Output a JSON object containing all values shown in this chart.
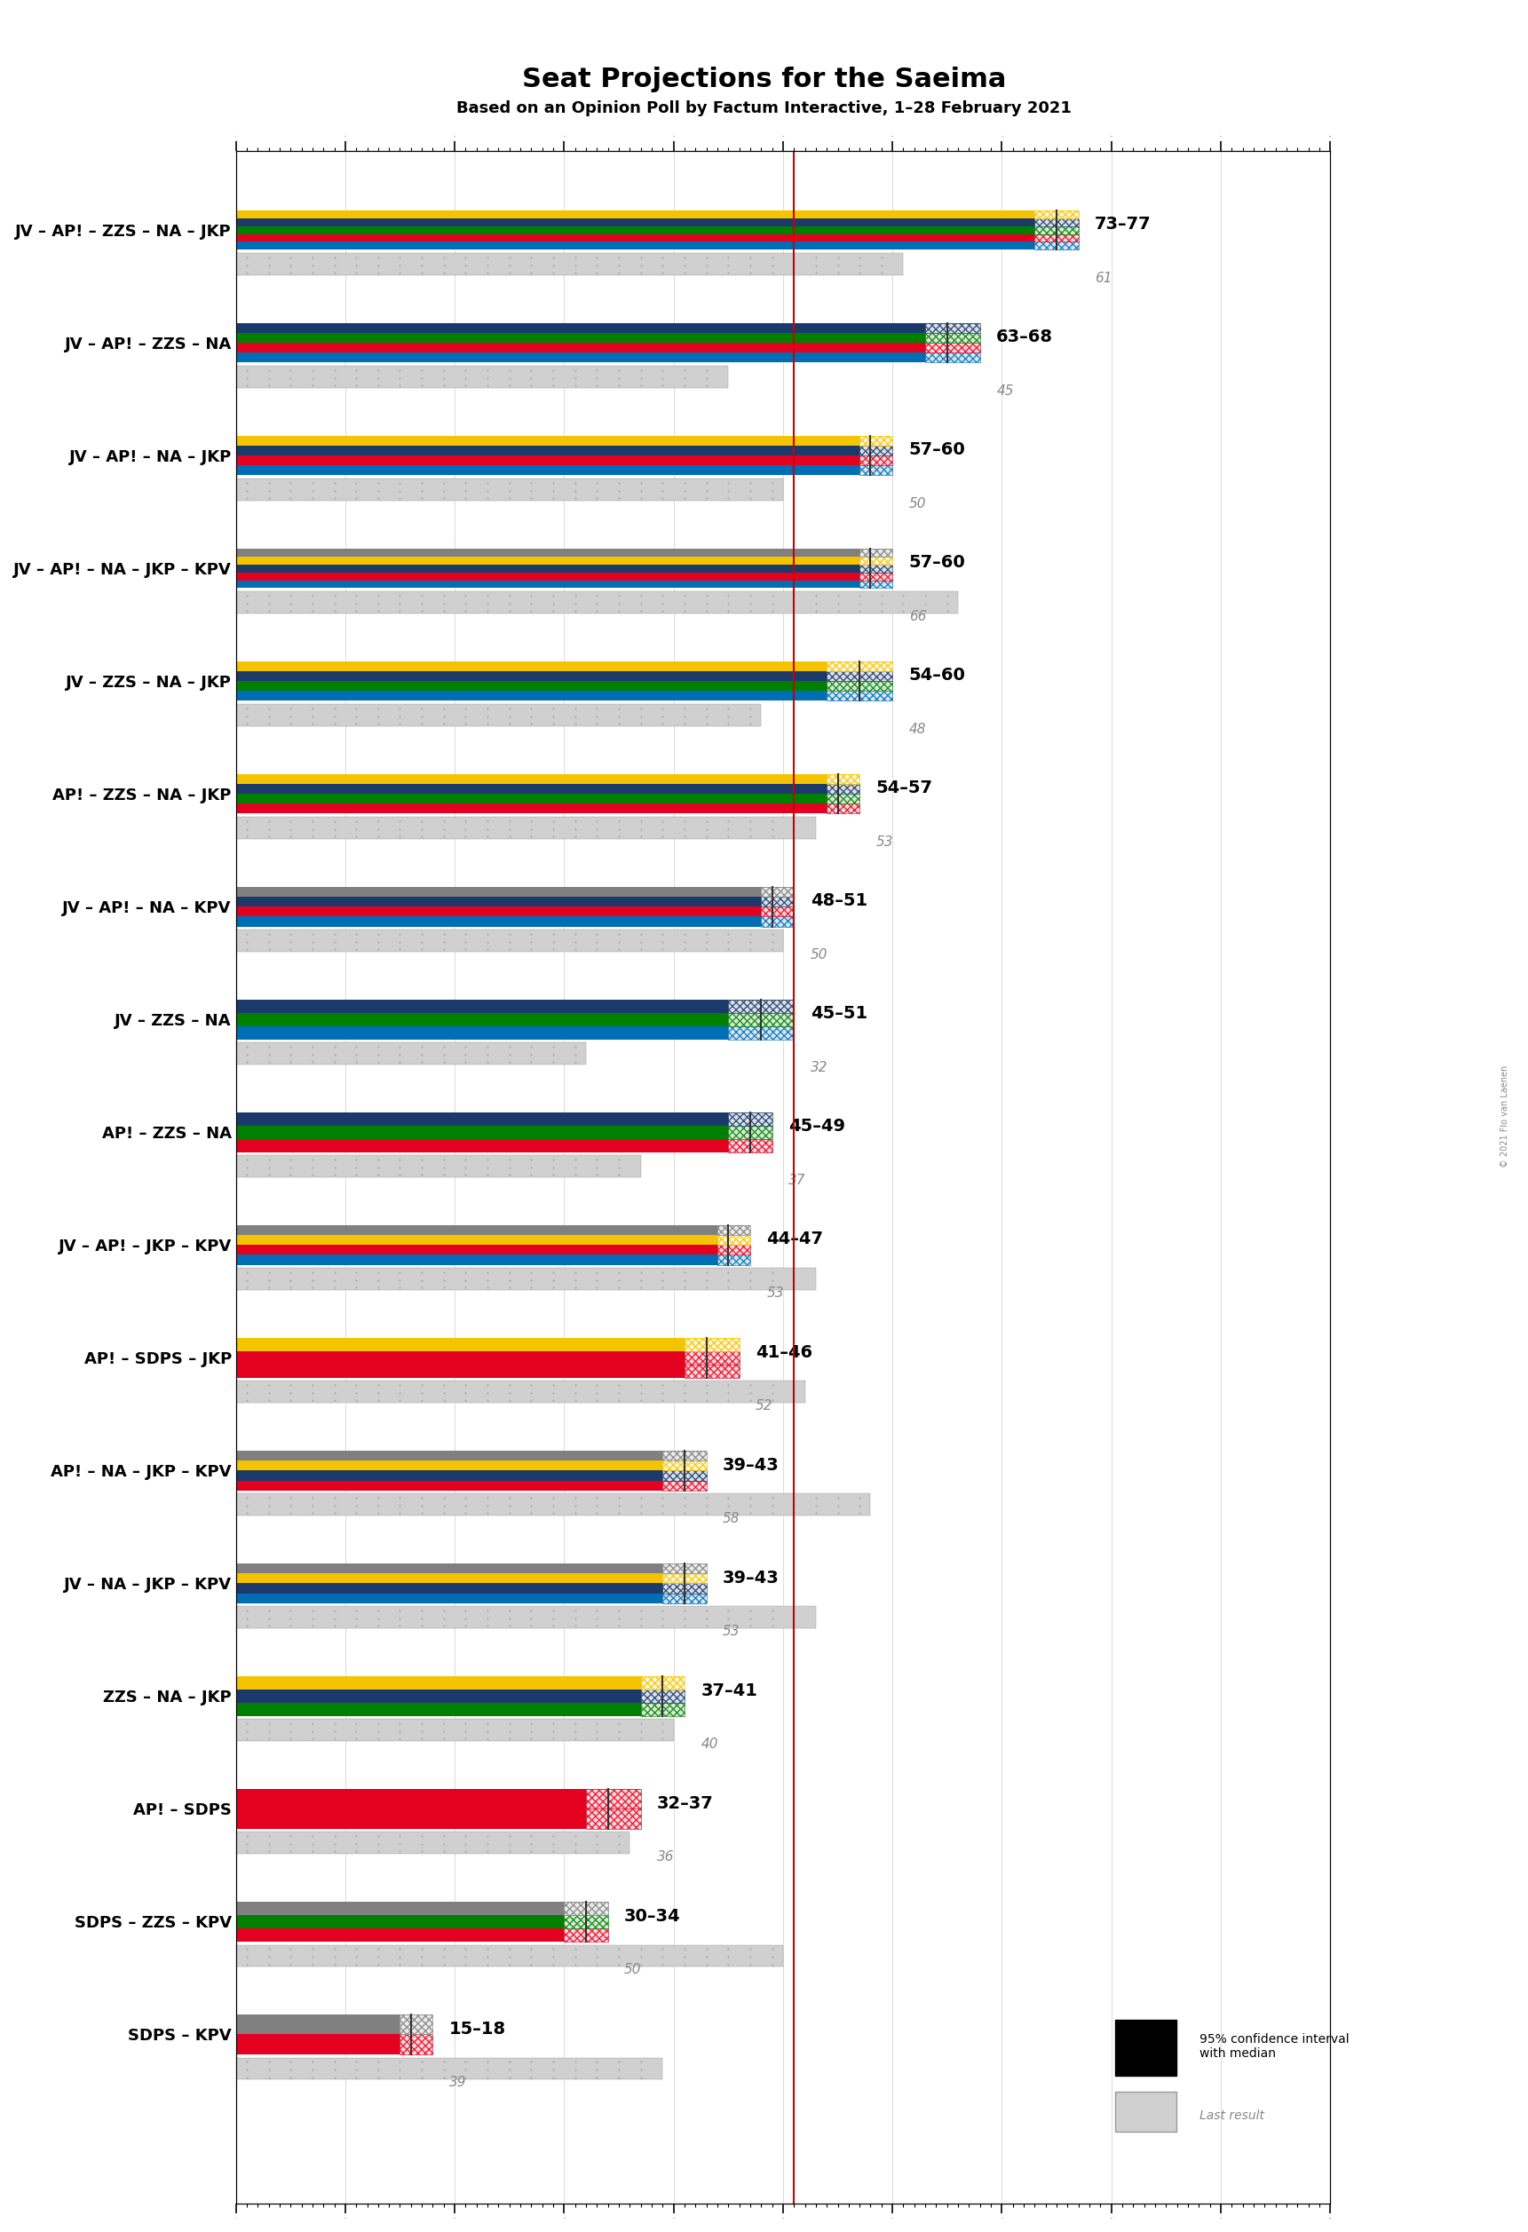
{
  "title": "Seat Projections for the Saeima",
  "subtitle": "Based on an Opinion Poll by Factum Interactive, 1–28 February 2021",
  "copyright": "© 2021 Flo van Laenen",
  "coalitions": [
    {
      "name": "JV – AP! – ZZS – NA – JKP",
      "underline": false,
      "range_low": 73,
      "range_high": 77,
      "median": 75,
      "last_result": 61,
      "parties": [
        "JV",
        "AP!",
        "ZZS",
        "NA",
        "JKP"
      ]
    },
    {
      "name": "JV – AP! – ZZS – NA",
      "underline": false,
      "range_low": 63,
      "range_high": 68,
      "median": 65,
      "last_result": 45,
      "parties": [
        "JV",
        "AP!",
        "ZZS",
        "NA"
      ]
    },
    {
      "name": "JV – AP! – NA – JKP",
      "underline": false,
      "range_low": 57,
      "range_high": 60,
      "median": 58,
      "last_result": 50,
      "parties": [
        "JV",
        "AP!",
        "NA",
        "JKP"
      ]
    },
    {
      "name": "JV – AP! – NA – JKP – KPV",
      "underline": true,
      "range_low": 57,
      "range_high": 60,
      "median": 58,
      "last_result": 66,
      "parties": [
        "JV",
        "AP!",
        "NA",
        "JKP",
        "KPV"
      ]
    },
    {
      "name": "JV – ZZS – NA – JKP",
      "underline": false,
      "range_low": 54,
      "range_high": 60,
      "median": 57,
      "last_result": 48,
      "parties": [
        "JV",
        "ZZS",
        "NA",
        "JKP"
      ]
    },
    {
      "name": "AP! – ZZS – NA – JKP",
      "underline": false,
      "range_low": 54,
      "range_high": 57,
      "median": 55,
      "last_result": 53,
      "parties": [
        "AP!",
        "ZZS",
        "NA",
        "JKP"
      ]
    },
    {
      "name": "JV – AP! – NA – KPV",
      "underline": false,
      "range_low": 48,
      "range_high": 51,
      "median": 49,
      "last_result": 50,
      "parties": [
        "JV",
        "AP!",
        "NA",
        "KPV"
      ]
    },
    {
      "name": "JV – ZZS – NA",
      "underline": false,
      "range_low": 45,
      "range_high": 51,
      "median": 48,
      "last_result": 32,
      "parties": [
        "JV",
        "ZZS",
        "NA"
      ]
    },
    {
      "name": "AP! – ZZS – NA",
      "underline": false,
      "range_low": 45,
      "range_high": 49,
      "median": 47,
      "last_result": 37,
      "parties": [
        "AP!",
        "ZZS",
        "NA"
      ]
    },
    {
      "name": "JV – AP! – JKP – KPV",
      "underline": false,
      "range_low": 44,
      "range_high": 47,
      "median": 45,
      "last_result": 53,
      "parties": [
        "JV",
        "AP!",
        "JKP",
        "KPV"
      ]
    },
    {
      "name": "AP! – SDPS – JKP",
      "underline": false,
      "range_low": 41,
      "range_high": 46,
      "median": 43,
      "last_result": 52,
      "parties": [
        "AP!",
        "SDPS",
        "JKP"
      ]
    },
    {
      "name": "AP! – NA – JKP – KPV",
      "underline": false,
      "range_low": 39,
      "range_high": 43,
      "median": 41,
      "last_result": 58,
      "parties": [
        "AP!",
        "NA",
        "JKP",
        "KPV"
      ]
    },
    {
      "name": "JV – NA – JKP – KPV",
      "underline": false,
      "range_low": 39,
      "range_high": 43,
      "median": 41,
      "last_result": 53,
      "parties": [
        "JV",
        "NA",
        "JKP",
        "KPV"
      ]
    },
    {
      "name": "ZZS – NA – JKP",
      "underline": false,
      "range_low": 37,
      "range_high": 41,
      "median": 39,
      "last_result": 40,
      "parties": [
        "ZZS",
        "NA",
        "JKP"
      ]
    },
    {
      "name": "AP! – SDPS",
      "underline": false,
      "range_low": 32,
      "range_high": 37,
      "median": 34,
      "last_result": 36,
      "parties": [
        "AP!",
        "SDPS"
      ]
    },
    {
      "name": "SDPS – ZZS – KPV",
      "underline": false,
      "range_low": 30,
      "range_high": 34,
      "median": 32,
      "last_result": 50,
      "parties": [
        "SDPS",
        "ZZS",
        "KPV"
      ]
    },
    {
      "name": "SDPS – KPV",
      "underline": false,
      "range_low": 15,
      "range_high": 18,
      "median": 16,
      "last_result": 39,
      "parties": [
        "SDPS",
        "KPV"
      ]
    }
  ],
  "party_colors": {
    "JV": "#006EB5",
    "AP!": "#E4001F",
    "ZZS": "#008000",
    "NA": "#1B3A6B",
    "JKP": "#F5C400",
    "KPV": "#808080",
    "SDPS": "#E4001F"
  },
  "majority_line": 51,
  "xmin": 0,
  "xmax": 100,
  "bar_height": 0.35,
  "confidence_bar_color": "#1a1a1a",
  "last_result_color": "#aaaaaa",
  "background_color": "#ffffff",
  "grid_color": "#cccccc"
}
